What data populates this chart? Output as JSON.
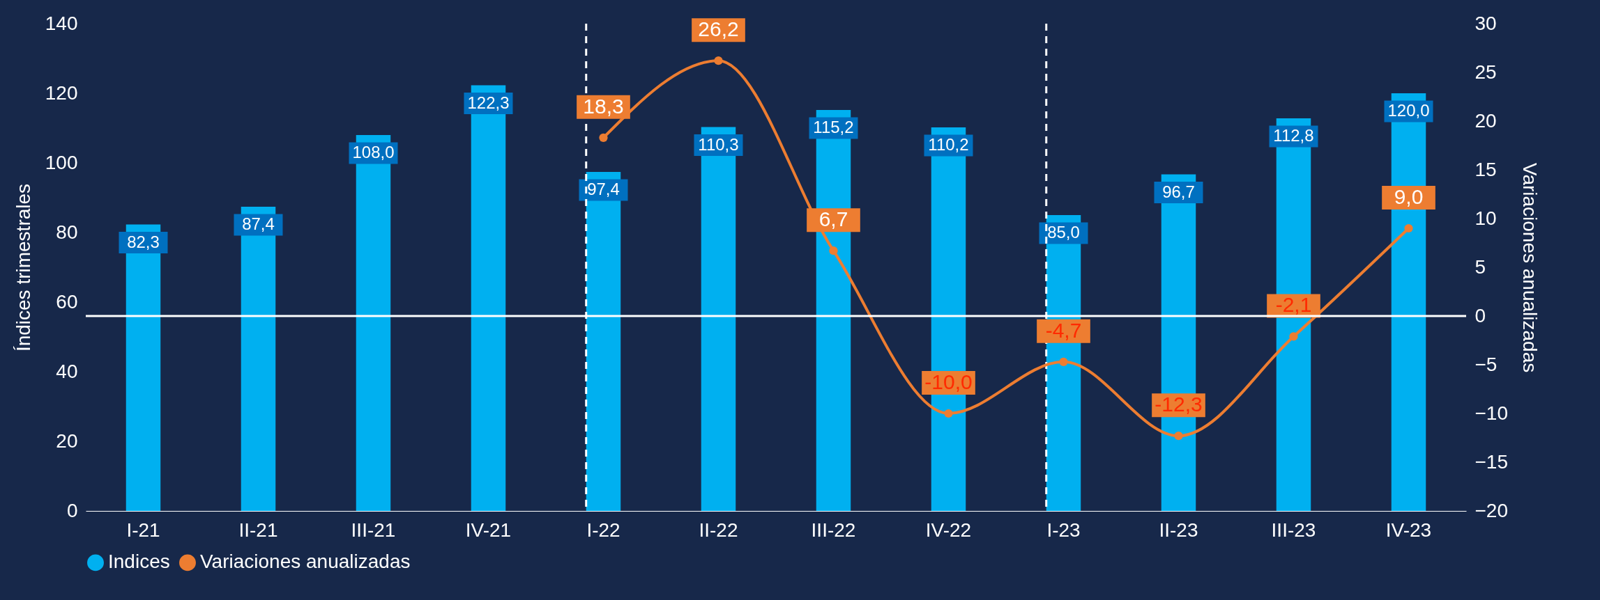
{
  "chart_data": {
    "type": "bar",
    "ylabel": "Índices trimestrales",
    "y2label": "Variaciones anualizadas",
    "categories": [
      "I-21",
      "II-21",
      "III-21",
      "IV-21",
      "I-22",
      "II-22",
      "III-22",
      "IV-22",
      "I-23",
      "II-23",
      "III-23",
      "IV-23"
    ],
    "series": [
      {
        "name": "Indices",
        "color": "#00b0f0",
        "values": [
          82.3,
          87.4,
          108.0,
          122.3,
          97.4,
          110.3,
          115.2,
          110.2,
          85.0,
          96.7,
          112.8,
          120.0
        ],
        "value_labels": [
          "82,3",
          "87,4",
          "108,0",
          "122,3",
          "97,4",
          "110,3",
          "115,2",
          "110,2",
          "85,0",
          "96,7",
          "112,8",
          "120,0"
        ]
      },
      {
        "name": "Variaciones anualizadas",
        "type": "line",
        "axis": "y2",
        "color": "#ed7d31",
        "values": [
          null,
          null,
          null,
          null,
          18.3,
          26.2,
          6.7,
          -10.0,
          -4.7,
          -12.3,
          -2.1,
          9.0
        ],
        "value_labels": [
          null,
          null,
          null,
          null,
          "18,3",
          "26,2",
          "6,7",
          "-10,0",
          "-4,7",
          "-12,3",
          "-2,1",
          "9,0"
        ]
      }
    ],
    "ylim": [
      0,
      140
    ],
    "yticks": [
      0,
      20,
      40,
      60,
      80,
      100,
      120,
      140
    ],
    "y2lim": [
      -20,
      30
    ],
    "y2ticks": [
      -20,
      -15,
      -10,
      -5,
      0,
      5,
      10,
      15,
      20,
      25,
      30
    ],
    "ref_lines": [
      {
        "axis": "x",
        "value": "I-22",
        "color": "#ffffff",
        "line_style": "dashed"
      },
      {
        "axis": "x",
        "value": "I-23",
        "color": "#ffffff",
        "line_style": "dashed"
      },
      {
        "axis": "y2",
        "value": 0,
        "color": "#ffffff",
        "line_style": "solid"
      }
    ],
    "grid": false,
    "legend": "bottom",
    "marker": "circle"
  }
}
